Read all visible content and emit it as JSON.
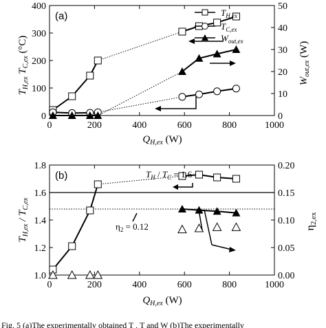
{
  "chart_data": [
    {
      "panel_label": "(a)",
      "type": "line",
      "xlabel": {
        "main": "Q",
        "sub": "H,ex",
        "unit": " (W)"
      },
      "ylabel_left": {
        "t1": "T",
        "s1": "H,ex",
        "t2": " T",
        "s2": "C,ex",
        "unit": " (°C)"
      },
      "ylabel_right": {
        "main": "W",
        "sub": "out,ex",
        "unit": " (W)"
      },
      "xlim": [
        0,
        1000
      ],
      "ylim_left": [
        0,
        400
      ],
      "ylim_right": [
        0,
        50
      ],
      "xticks": [
        "0",
        "200",
        "400",
        "600",
        "800",
        "1000"
      ],
      "yticks_left": [
        "0",
        "100",
        "200",
        "300",
        "400"
      ],
      "yticks_right": [
        "0",
        "10",
        "20",
        "30",
        "40",
        "50"
      ],
      "legend": {
        "placement": "top-right",
        "entries": [
          {
            "main": "T",
            "sub": "H,ex",
            "marker": "square"
          },
          {
            "main": "T",
            "sub": "C,ex",
            "marker": "circle"
          },
          {
            "main": "W",
            "sub": "out,ex",
            "marker": "triangle-filled"
          }
        ]
      },
      "series": [
        {
          "name": "T_H,ex",
          "axis": "left",
          "marker": "square",
          "x": [
            15,
            100,
            180,
            215,
            590,
            665,
            745,
            830
          ],
          "y": [
            20,
            70,
            145,
            200,
            305,
            325,
            338,
            360
          ]
        },
        {
          "name": "T_C,ex",
          "axis": "left",
          "marker": "circle",
          "x": [
            15,
            100,
            180,
            215,
            590,
            665,
            745,
            830
          ],
          "y": [
            12,
            9,
            10,
            12,
            68,
            77,
            88,
            98
          ]
        },
        {
          "name": "W_out,ex",
          "axis": "right",
          "marker": "triangle-filled",
          "x": [
            15,
            100,
            180,
            215,
            590,
            665,
            745,
            830
          ],
          "y": [
            0,
            0,
            0,
            0,
            20,
            26,
            28,
            30
          ]
        }
      ]
    },
    {
      "panel_label": "(b)",
      "type": "line",
      "xlabel": {
        "main": "Q",
        "sub": "H,ex",
        "unit": " (W)"
      },
      "ylabel_left": {
        "t1": "T",
        "s1": "H,ex",
        "t2": " / T",
        "s2": "C,ex"
      },
      "ylabel_right": {
        "main": "η",
        "sub": "2,ex"
      },
      "xlim": [
        0,
        1000
      ],
      "ylim_left": [
        1.0,
        1.8
      ],
      "ylim_right": [
        0,
        0.2
      ],
      "xticks": [
        "0",
        "200",
        "400",
        "600",
        "800",
        "1000"
      ],
      "yticks_left": [
        "1.0",
        "1.2",
        "1.4",
        "1.6",
        "1.8"
      ],
      "yticks_right": [
        "0.00",
        "0.05",
        "0.10",
        "0.15",
        "0.20"
      ],
      "annotations": [
        {
          "label": "T_H / T_C = 1.6",
          "main1": "T",
          "sub1": "H",
          "mid": " / ",
          "main2": "T",
          "sub2": "C",
          "tail": " = 1.6",
          "value": 1.6
        },
        {
          "label": "η_2 = 0.12",
          "main": "η",
          "sub": "2",
          "tail": " = 0.12",
          "value": 0.12
        }
      ],
      "series": [
        {
          "name": "T_H,ex / T_C,ex",
          "axis": "left",
          "marker": "square",
          "x": [
            15,
            100,
            180,
            215,
            590,
            665,
            745,
            830
          ],
          "y": [
            1.04,
            1.21,
            1.47,
            1.66,
            1.72,
            1.73,
            1.71,
            1.7
          ]
        },
        {
          "name": "η_2,ex",
          "axis": "right",
          "marker": "triangle-filled",
          "x": [
            590,
            665,
            745,
            830
          ],
          "y": [
            0.12,
            0.118,
            0.116,
            0.113
          ]
        },
        {
          "name": "η_2,ex (open)",
          "axis": "right",
          "marker": "triangle-open",
          "x": [
            15,
            100,
            180,
            215,
            590,
            665,
            745,
            830
          ],
          "y": [
            0,
            0,
            0,
            0,
            0.083,
            0.085,
            0.087,
            0.087
          ]
        }
      ]
    }
  ],
  "caption": "Fig. 5   (a)The experimentally obtained T   , T    and W      (b)The experimentally"
}
